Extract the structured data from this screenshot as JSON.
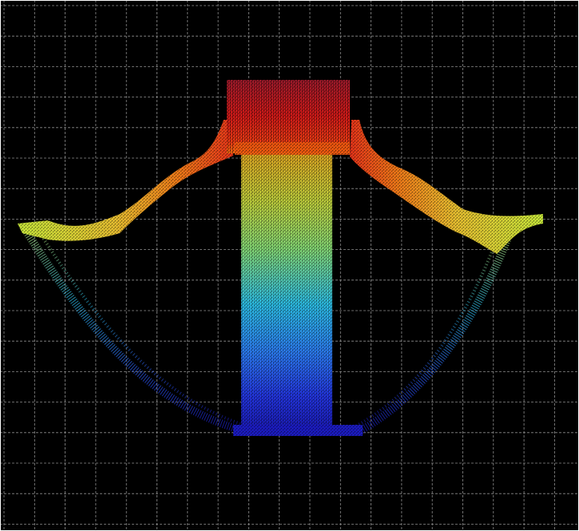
{
  "viewer": {
    "background_color": "#000000",
    "grid_color": "#8c8c8c",
    "grid_style": "dashed",
    "grid_visible": true,
    "frame_color": "#ffffff"
  },
  "point_cloud": {
    "colormap": "jet",
    "colormap_stops": [
      "#1a1aa8",
      "#2a4ef0",
      "#28b8e8",
      "#7fe0a0",
      "#c8e03a",
      "#f0b020",
      "#f06a10",
      "#d01818",
      "#9a1020"
    ],
    "colors": {
      "deep_blue": "#1a20b8",
      "blue": "#2546e6",
      "cyan": "#2ab6dc",
      "yellow_green": "#c9e23a",
      "yellow": "#e8d64a",
      "orange": "#f08a1c",
      "red": "#d81c18",
      "dark_red": "#a01424"
    }
  }
}
